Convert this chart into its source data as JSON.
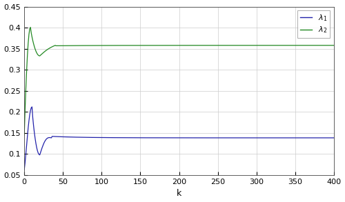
{
  "xlim": [
    0,
    400
  ],
  "ylim": [
    0.05,
    0.45
  ],
  "xlabel": "k",
  "yticks": [
    0.05,
    0.1,
    0.15,
    0.2,
    0.25,
    0.3,
    0.35,
    0.4,
    0.45
  ],
  "xticks": [
    0,
    50,
    100,
    150,
    200,
    250,
    300,
    350,
    400
  ],
  "lambda1_color": "#2222aa",
  "lambda2_color": "#228822",
  "lambda1_steady": 0.1385,
  "lambda2_steady": 0.358,
  "figsize": [
    5.0,
    2.93
  ],
  "dpi": 100
}
